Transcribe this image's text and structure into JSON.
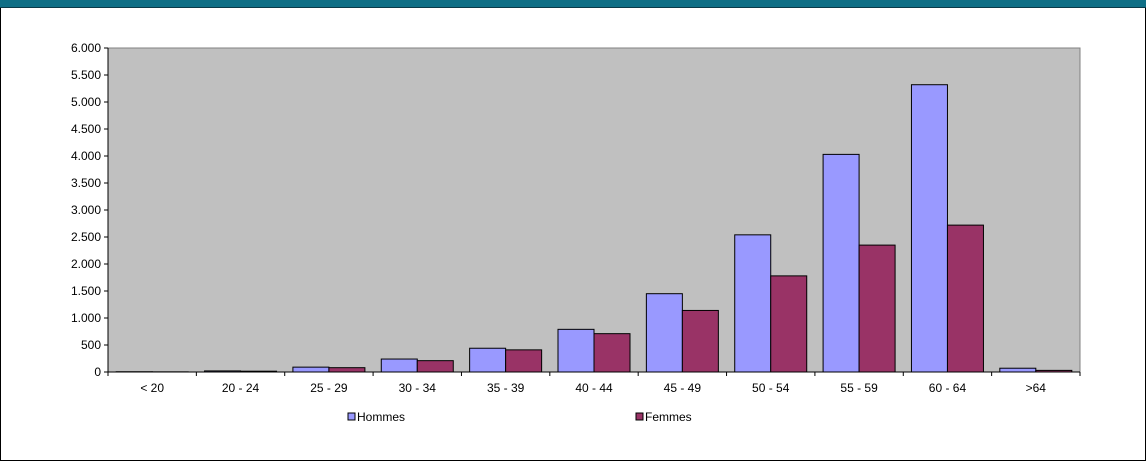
{
  "chart_data": {
    "type": "bar",
    "title": "",
    "xlabel": "",
    "ylabel": "",
    "categories": [
      "< 20",
      "20 - 24",
      "25 - 29",
      "30 - 34",
      "35 - 39",
      "40 - 44",
      "45 - 49",
      "50 - 54",
      "55 - 59",
      "60 - 64",
      ">64"
    ],
    "series": [
      {
        "name": "Hommes",
        "color": "#9999ff",
        "values": [
          5,
          20,
          90,
          240,
          440,
          790,
          1450,
          2540,
          4030,
          5320,
          70
        ]
      },
      {
        "name": "Femmes",
        "color": "#993366",
        "values": [
          3,
          15,
          80,
          210,
          410,
          710,
          1140,
          1780,
          2350,
          2720,
          30
        ]
      }
    ],
    "ylim": [
      0,
      6000
    ],
    "yticks": [
      0,
      500,
      1000,
      1500,
      2000,
      2500,
      3000,
      3500,
      4000,
      4500,
      5000,
      5500,
      6000
    ],
    "ytick_labels": [
      "0",
      "500",
      "1.000",
      "1.500",
      "2.000",
      "2.500",
      "3.000",
      "3.500",
      "4.000",
      "4.500",
      "5.000",
      "5.500",
      "6.000"
    ],
    "plot_background": "#c0c0c0",
    "grid": false,
    "legend_position": "bottom"
  }
}
